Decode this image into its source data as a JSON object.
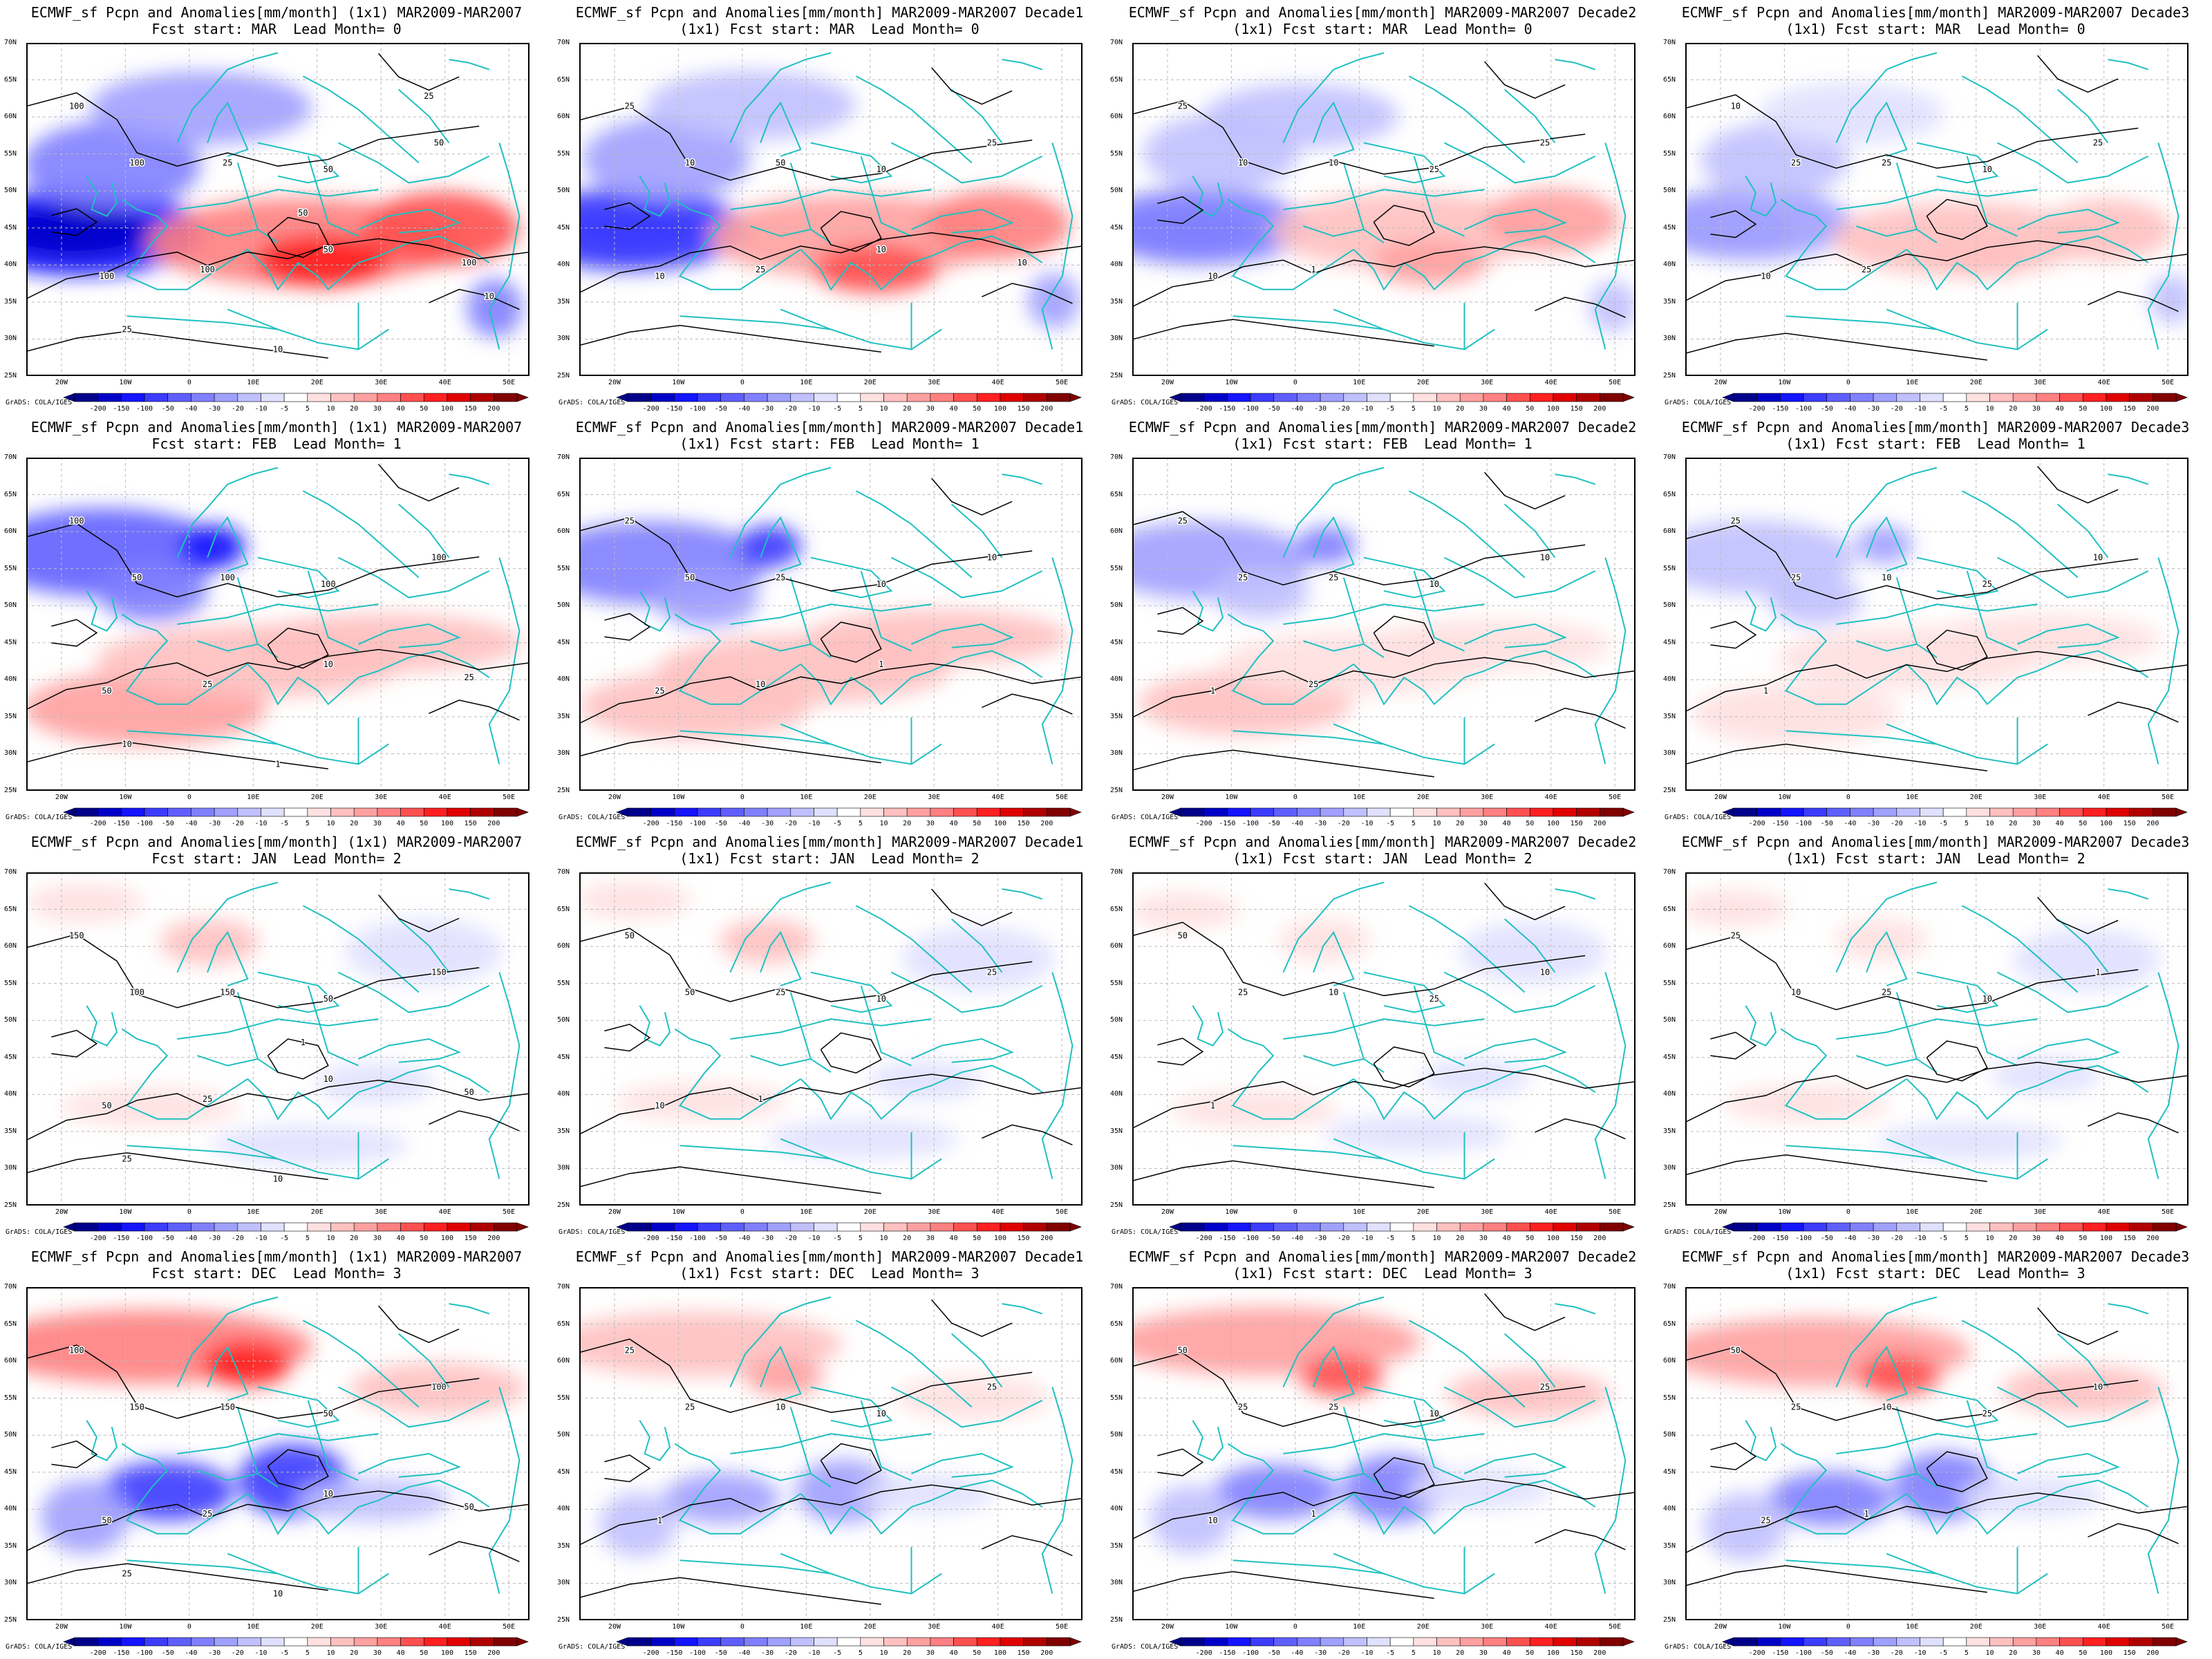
{
  "credit": "GrADS: COLA/IGES",
  "colorbar": {
    "labels": [
      "-200",
      "-150",
      "-100",
      "-50",
      "-40",
      "-30",
      "-20",
      "-10",
      "-5",
      "5",
      "10",
      "20",
      "30",
      "40",
      "50",
      "100",
      "150",
      "200"
    ],
    "colors": [
      "#00008b",
      "#0000c8",
      "#1414ff",
      "#3c3cff",
      "#5f5fff",
      "#8080ff",
      "#a0a0ff",
      "#c0c0ff",
      "#e0e0ff",
      "#ffffff",
      "#ffe0e0",
      "#ffc0c0",
      "#ffa0a0",
      "#ff8080",
      "#ff5050",
      "#ff2020",
      "#e00000",
      "#b00000",
      "#800000"
    ]
  },
  "map": {
    "lat_labels": [
      "70N",
      "65N",
      "60N",
      "55N",
      "50N",
      "45N",
      "40N",
      "35N",
      "30N",
      "25N"
    ],
    "lon_labels": [
      "20W",
      "10W",
      "0",
      "10E",
      "20E",
      "30E",
      "40E",
      "50E"
    ],
    "coast_color": "#20c0c0",
    "contour_color": "#000000"
  },
  "panels": [
    {
      "row": 0,
      "col": 0,
      "line1": "ECMWF_sf Pcpn and Anomalies[mm/month] (1x1) MAR2009-MAR2007",
      "line2": "Fcst start: MAR  Lead Month= 0",
      "anom_scale": 1.0,
      "contours": [
        "100",
        "100",
        "25",
        "50",
        "50",
        "100",
        "100",
        "50",
        "100",
        "25",
        "10",
        "50",
        "25",
        "10"
      ]
    },
    {
      "row": 0,
      "col": 1,
      "line1": "ECMWF_sf Pcpn and Anomalies[mm/month] MAR2009-MAR2007 Decade1",
      "line2": "(1x1) Fcst start: MAR  Lead Month= 0",
      "anom_scale": 0.8,
      "contours": [
        "25",
        "10",
        "50",
        "10",
        "25",
        "10",
        "25",
        "10",
        "10"
      ]
    },
    {
      "row": 0,
      "col": 2,
      "line1": "ECMWF_sf Pcpn and Anomalies[mm/month] MAR2009-MAR2007 Decade2",
      "line2": "(1x1) Fcst start: MAR  Lead Month= 0",
      "anom_scale": 0.55,
      "contours": [
        "25",
        "10",
        "10",
        "25",
        "25",
        "10",
        "1"
      ]
    },
    {
      "row": 0,
      "col": 3,
      "line1": "ECMWF_sf Pcpn and Anomalies[mm/month] MAR2009-MAR2007 Decade3",
      "line2": "(1x1) Fcst start: MAR  Lead Month= 0",
      "anom_scale": 0.4,
      "contours": [
        "10",
        "25",
        "25",
        "10",
        "25",
        "10",
        "25"
      ]
    },
    {
      "row": 1,
      "col": 0,
      "line1": "ECMWF_sf Pcpn and Anomalies[mm/month] (1x1) MAR2009-MAR2007",
      "line2": "Fcst start: FEB  Lead Month= 1",
      "anom_scale": 1.0,
      "contours": [
        "100",
        "50",
        "100",
        "100",
        "100",
        "50",
        "25",
        "10",
        "25",
        "10",
        "1"
      ]
    },
    {
      "row": 1,
      "col": 1,
      "line1": "ECMWF_sf Pcpn and Anomalies[mm/month] MAR2009-MAR2007 Decade1",
      "line2": "(1x1) Fcst start: FEB  Lead Month= 1",
      "anom_scale": 0.8,
      "contours": [
        "25",
        "50",
        "25",
        "10",
        "10",
        "25",
        "10",
        "1"
      ]
    },
    {
      "row": 1,
      "col": 2,
      "line1": "ECMWF_sf Pcpn and Anomalies[mm/month] MAR2009-MAR2007 Decade2",
      "line2": "(1x1) Fcst start: FEB  Lead Month= 1",
      "anom_scale": 0.55,
      "contours": [
        "25",
        "25",
        "25",
        "10",
        "10",
        "1",
        "25"
      ]
    },
    {
      "row": 1,
      "col": 3,
      "line1": "ECMWF_sf Pcpn and Anomalies[mm/month] MAR2009-MAR2007 Decade3",
      "line2": "(1x1) Fcst start: FEB  Lead Month= 1",
      "anom_scale": 0.45,
      "contours": [
        "25",
        "25",
        "10",
        "25",
        "10",
        "1"
      ]
    },
    {
      "row": 2,
      "col": 0,
      "line1": "ECMWF_sf Pcpn and Anomalies[mm/month] (1x1) MAR2009-MAR2007",
      "line2": "Fcst start: JAN  Lead Month= 2",
      "anom_scale": 0.6,
      "contours": [
        "150",
        "100",
        "150",
        "50",
        "150",
        "50",
        "25",
        "10",
        "50",
        "25",
        "10",
        "1"
      ]
    },
    {
      "row": 2,
      "col": 1,
      "line1": "ECMWF_sf Pcpn and Anomalies[mm/month] MAR2009-MAR2007 Decade1",
      "line2": "(1x1) Fcst start: JAN  Lead Month= 2",
      "anom_scale": 0.5,
      "contours": [
        "50",
        "50",
        "25",
        "10",
        "25",
        "10",
        "1"
      ]
    },
    {
      "row": 2,
      "col": 2,
      "line1": "ECMWF_sf Pcpn and Anomalies[mm/month] MAR2009-MAR2007 Decade2",
      "line2": "(1x1) Fcst start: JAN  Lead Month= 2",
      "anom_scale": 0.4,
      "contours": [
        "50",
        "25",
        "10",
        "25",
        "10",
        "1"
      ]
    },
    {
      "row": 2,
      "col": 3,
      "line1": "ECMWF_sf Pcpn and Anomalies[mm/month] MAR2009-MAR2007 Decade3",
      "line2": "(1x1) Fcst start: JAN  Lead Month= 2",
      "anom_scale": 0.4,
      "contours": [
        "25",
        "10",
        "25",
        "10",
        "1"
      ]
    },
    {
      "row": 3,
      "col": 0,
      "line1": "ECMWF_sf Pcpn and Anomalies[mm/month] (1x1) MAR2009-MAR2007",
      "line2": "Fcst start: DEC  Lead Month= 3",
      "anom_scale": 1.0,
      "contours": [
        "100",
        "150",
        "150",
        "50",
        "100",
        "50",
        "25",
        "10",
        "50",
        "25",
        "10"
      ]
    },
    {
      "row": 3,
      "col": 1,
      "line1": "ECMWF_sf Pcpn and Anomalies[mm/month] MAR2009-MAR2007 Decade1",
      "line2": "(1x1) Fcst start: DEC  Lead Month= 3",
      "anom_scale": 0.55,
      "contours": [
        "25",
        "25",
        "10",
        "10",
        "25",
        "1"
      ]
    },
    {
      "row": 3,
      "col": 2,
      "line1": "ECMWF_sf Pcpn and Anomalies[mm/month] MAR2009-MAR2007 Decade2",
      "line2": "(1x1) Fcst start: DEC  Lead Month= 3",
      "anom_scale": 0.75,
      "contours": [
        "50",
        "25",
        "25",
        "10",
        "25",
        "10",
        "1"
      ]
    },
    {
      "row": 3,
      "col": 3,
      "line1": "ECMWF_sf Pcpn and Anomalies[mm/month] MAR2009-MAR2007 Decade3",
      "line2": "(1x1) Fcst start: DEC  Lead Month= 3",
      "anom_scale": 0.75,
      "contours": [
        "50",
        "25",
        "10",
        "25",
        "10",
        "25",
        "1"
      ]
    }
  ]
}
